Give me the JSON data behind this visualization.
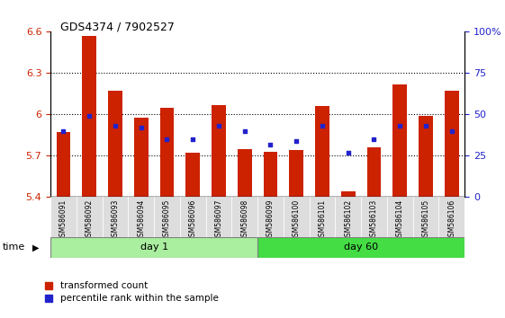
{
  "title": "GDS4374 / 7902527",
  "samples": [
    "GSM586091",
    "GSM586092",
    "GSM586093",
    "GSM586094",
    "GSM586095",
    "GSM586096",
    "GSM586097",
    "GSM586098",
    "GSM586099",
    "GSM586100",
    "GSM586101",
    "GSM586102",
    "GSM586103",
    "GSM586104",
    "GSM586105",
    "GSM586106"
  ],
  "bar_values": [
    5.87,
    6.57,
    6.17,
    5.98,
    6.05,
    5.72,
    6.07,
    5.75,
    5.73,
    5.74,
    6.06,
    5.44,
    5.76,
    6.22,
    5.99,
    6.17
  ],
  "blue_values": [
    40,
    49,
    43,
    42,
    35,
    35,
    43,
    40,
    32,
    34,
    43,
    27,
    35,
    43,
    43,
    40
  ],
  "ylim_left": [
    5.4,
    6.6
  ],
  "ylim_right": [
    0,
    100
  ],
  "yticks_left": [
    5.4,
    5.7,
    6.0,
    6.3,
    6.6
  ],
  "yticks_right": [
    0,
    25,
    50,
    75,
    100
  ],
  "ytick_labels_left": [
    "5.4",
    "5.7",
    "6",
    "6.3",
    "6.6"
  ],
  "ytick_labels_right": [
    "0",
    "25",
    "50",
    "75",
    "100%"
  ],
  "group1_label": "day 1",
  "group2_label": "day 60",
  "group1_count": 8,
  "group2_count": 8,
  "bar_color": "#cc2200",
  "blue_color": "#2222cc",
  "background_bar": "#dddddd",
  "background_group1": "#aaeea0",
  "background_group2": "#44dd44",
  "legend_red": "transformed count",
  "legend_blue": "percentile rank within the sample",
  "time_label": "time",
  "bar_bottom": 5.4,
  "blue_marker_size": 6,
  "bar_width": 0.55
}
